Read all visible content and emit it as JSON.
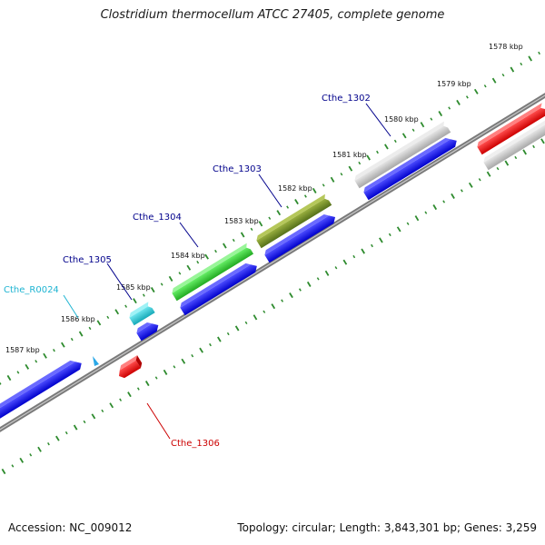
{
  "title": "Clostridium thermocellum ATCC 27405, complete genome",
  "footer": {
    "accession": "Accession: NC_009012",
    "topology": "Topology: circular; Length: 3,843,301 bp; Genes: 3,259"
  },
  "colors": {
    "backbone": "#808080",
    "ticks": "#2e8b2e",
    "cds_forward": "#0000ee",
    "cds_reverse": "#ee0000",
    "rrna": "#1ec8d8",
    "trna": "#2aa8e8",
    "gene_green": "#33cc33",
    "gene_olive": "#6b8e23",
    "gene_gray": "#c0c0c0",
    "label_default": "#00008b",
    "label_red": "#cc0000",
    "label_cyan": "#1eb4d2"
  },
  "scale_labels": [
    "1578 kbp",
    "1579 kbp",
    "1580 kbp",
    "1581 kbp",
    "1582 kbp",
    "1583 kbp",
    "1584 kbp",
    "1585 kbp",
    "1586 kbp",
    "1587 kbp"
  ],
  "gene_labels": [
    {
      "text": "Cthe_1302",
      "color": "#00008b"
    },
    {
      "text": "Cthe_1303",
      "color": "#00008b"
    },
    {
      "text": "Cthe_1304",
      "color": "#00008b"
    },
    {
      "text": "Cthe_1305",
      "color": "#00008b"
    },
    {
      "text": "Cthe_R0024",
      "color": "#1eb4d2"
    },
    {
      "text": "Cthe_1306",
      "color": "#cc0000"
    }
  ]
}
